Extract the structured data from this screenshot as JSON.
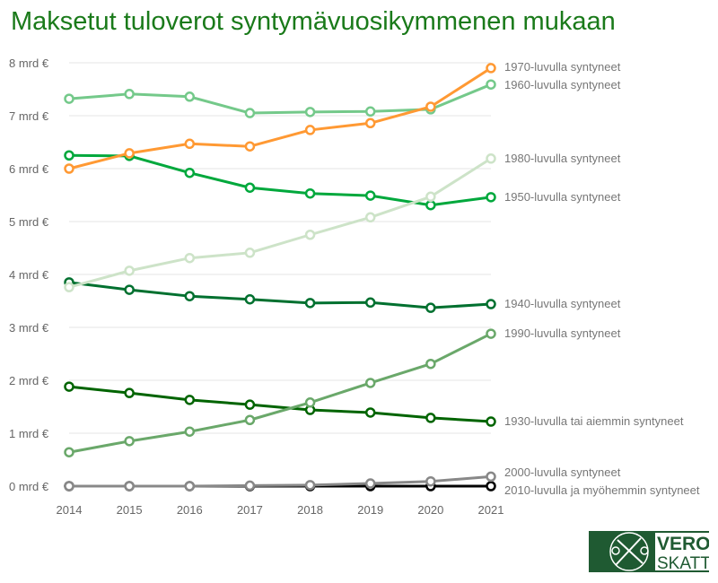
{
  "chart_data": {
    "type": "line",
    "title": "Maksetut tuloverot syntymävuosikymmenen mukaan",
    "x": [
      2014,
      2015,
      2016,
      2017,
      2018,
      2019,
      2020,
      2021
    ],
    "yticks": [
      "0 mrd €",
      "1 mrd €",
      "2 mrd €",
      "3 mrd €",
      "4 mrd €",
      "5 mrd €",
      "6 mrd €",
      "7 mrd €",
      "8 mrd €"
    ],
    "ylim": [
      0,
      8
    ],
    "grid": true,
    "legend": "right-end labels",
    "series": [
      {
        "name": "1970-luvulla syntyneet",
        "color": "#ff9933",
        "values": [
          6.0,
          6.29,
          6.47,
          6.42,
          6.73,
          6.86,
          7.17,
          7.9
        ]
      },
      {
        "name": "1960-luvulla syntyneet",
        "color": "#74c98a",
        "values": [
          7.32,
          7.41,
          7.36,
          7.05,
          7.07,
          7.08,
          7.12,
          7.59
        ]
      },
      {
        "name": "1980-luvulla syntyneet",
        "color": "#cde3c8",
        "values": [
          3.76,
          4.07,
          4.31,
          4.41,
          4.75,
          5.08,
          5.47,
          6.19
        ]
      },
      {
        "name": "1950-luvulla syntyneet",
        "color": "#00a83c",
        "values": [
          6.25,
          6.24,
          5.92,
          5.64,
          5.53,
          5.49,
          5.31,
          5.46
        ]
      },
      {
        "name": "1940-luvulla syntyneet",
        "color": "#00702f",
        "values": [
          3.85,
          3.71,
          3.59,
          3.53,
          3.46,
          3.47,
          3.37,
          3.44
        ]
      },
      {
        "name": "1990-luvulla syntyneet",
        "color": "#6aa86a",
        "values": [
          0.64,
          0.85,
          1.03,
          1.25,
          1.58,
          1.95,
          2.31,
          2.88
        ]
      },
      {
        "name": "1930-luvulla tai aiemmin syntyneet",
        "color": "#006400",
        "values": [
          1.88,
          1.76,
          1.63,
          1.54,
          1.44,
          1.39,
          1.29,
          1.22
        ]
      },
      {
        "name": "2000-luvulla syntyneet",
        "color": "#888888",
        "values": [
          0,
          0,
          0,
          0.01,
          0.02,
          0.05,
          0.09,
          0.18
        ]
      },
      {
        "name": "2010-luvulla ja myöhemmin syntyneet",
        "color": "#000000",
        "values": [
          0,
          0,
          0,
          0,
          0,
          0,
          0,
          0
        ]
      }
    ]
  },
  "logo": {
    "line1": "VERO",
    "line2": "SKATT",
    "color": "#1f5a32"
  }
}
